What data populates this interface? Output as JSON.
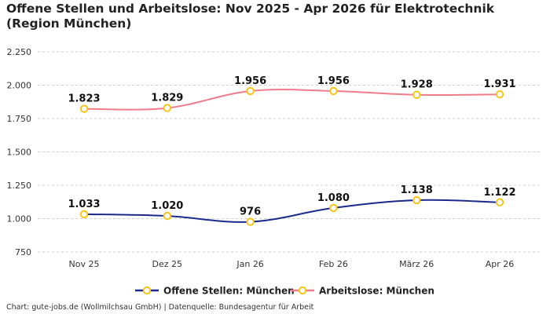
{
  "chart_data": {
    "type": "line",
    "title": "Offene Stellen und Arbeitslose: Nov 2025 - Apr 2026 für Elektrotechnik (Region München)",
    "categories": [
      "Nov 25",
      "Dez 25",
      "Jan 26",
      "Feb 26",
      "März 26",
      "Apr 26"
    ],
    "y_ticks": [
      "750",
      "1.000",
      "1.250",
      "1.500",
      "1.750",
      "2.000",
      "2.250"
    ],
    "ylim": [
      700,
      2300
    ],
    "grid": true,
    "legend_position": "bottom",
    "series": [
      {
        "name": "Offene Stellen: München",
        "values": [
          1033,
          1020,
          976,
          1080,
          1138,
          1122
        ],
        "labels": [
          "1.033",
          "1.020",
          "976",
          "1.080",
          "1.138",
          "1.122"
        ],
        "color": "#1a2a8c"
      },
      {
        "name": "Arbeitslose: München",
        "values": [
          1823,
          1829,
          1956,
          1956,
          1928,
          1931
        ],
        "labels": [
          "1.823",
          "1.829",
          "1.956",
          "1.956",
          "1.928",
          "1.931"
        ],
        "color": "#f07c8a"
      }
    ],
    "marker_color": "#f5c518"
  },
  "source": "Chart: gute-jobs.de (Wollmilchsau GmbH) | Datenquelle: Bundesagentur für Arbeit"
}
